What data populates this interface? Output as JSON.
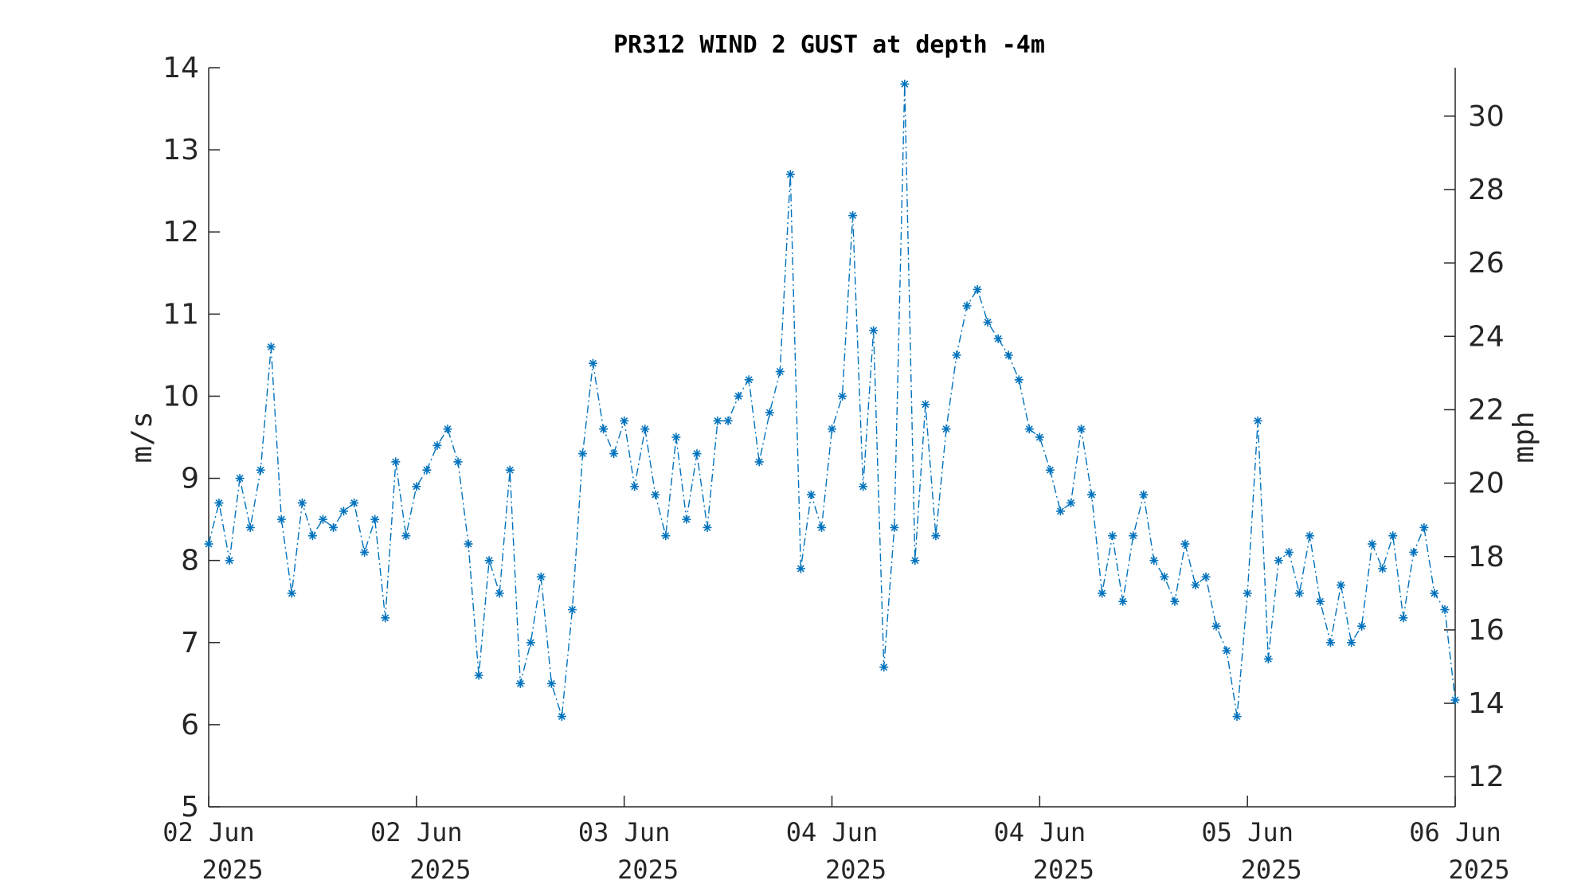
{
  "chart_data": {
    "type": "line",
    "title": "PR312 WIND 2 GUST at depth -4m",
    "ylabel": "m/s",
    "ylabel_right": "mph",
    "ylim": [
      5,
      14
    ],
    "ylim_right": [
      11.18,
      31.32
    ],
    "yticks": [
      5,
      6,
      7,
      8,
      9,
      10,
      11,
      12,
      13,
      14
    ],
    "yticks_right": [
      12,
      14,
      16,
      18,
      20,
      22,
      24,
      26,
      28,
      30
    ],
    "xlim": [
      0,
      6
    ],
    "xticks": [
      0,
      1,
      2,
      3,
      4,
      5,
      6
    ],
    "xtick_labels": [
      [
        "02 Jun",
        "2025"
      ],
      [
        "02 Jun",
        "2025"
      ],
      [
        "03 Jun",
        "2025"
      ],
      [
        "04 Jun",
        "2025"
      ],
      [
        "04 Jun",
        "2025"
      ],
      [
        "05 Jun",
        "2025"
      ],
      [
        "06 Jun",
        "2025"
      ]
    ],
    "marker": "asterisk",
    "line_style": "dash-dot",
    "grid": false,
    "color": "#0072BD",
    "series": [
      {
        "x": [
          0.0,
          0.05,
          0.1,
          0.15,
          0.2,
          0.25,
          0.3,
          0.35,
          0.4,
          0.45,
          0.5,
          0.55,
          0.6,
          0.65,
          0.7,
          0.75,
          0.8,
          0.85,
          0.9,
          0.95,
          1.0,
          1.05,
          1.1,
          1.15,
          1.2,
          1.25,
          1.3,
          1.35,
          1.4,
          1.45,
          1.5,
          1.55,
          1.6,
          1.65,
          1.7,
          1.75,
          1.8,
          1.85,
          1.9,
          1.95,
          2.0,
          2.05,
          2.1,
          2.15,
          2.2,
          2.25,
          2.3,
          2.35,
          2.4,
          2.45,
          2.5,
          2.55,
          2.6,
          2.65,
          2.7,
          2.75,
          2.8,
          2.85,
          2.9,
          2.95,
          3.0,
          3.05,
          3.1,
          3.15,
          3.2,
          3.25,
          3.3,
          3.35,
          3.4,
          3.45,
          3.5,
          3.55,
          3.6,
          3.65,
          3.7,
          3.75,
          3.8,
          3.85,
          3.9,
          3.95,
          4.0,
          4.05,
          4.1,
          4.15,
          4.2,
          4.25,
          4.3,
          4.35,
          4.4,
          4.45,
          4.5,
          4.55,
          4.6,
          4.65,
          4.7,
          4.75,
          4.8,
          4.85,
          4.9,
          4.95,
          5.0,
          5.05,
          5.1,
          5.15,
          5.2,
          5.25,
          5.3,
          5.35,
          5.4,
          5.45,
          5.5,
          5.55,
          5.6,
          5.65,
          5.7,
          5.75,
          5.8,
          5.85,
          5.9,
          5.95,
          6.0
        ],
        "y": [
          8.2,
          8.7,
          8.0,
          9.0,
          8.4,
          9.1,
          10.6,
          8.5,
          7.6,
          8.7,
          8.3,
          8.5,
          8.4,
          8.6,
          8.7,
          8.1,
          8.5,
          7.3,
          9.2,
          8.3,
          8.9,
          9.1,
          9.4,
          9.6,
          9.2,
          8.2,
          6.6,
          8.0,
          7.6,
          9.1,
          6.5,
          7.0,
          7.8,
          6.5,
          6.1,
          7.4,
          9.3,
          10.4,
          9.6,
          9.3,
          9.7,
          8.9,
          9.6,
          8.8,
          8.3,
          9.5,
          8.5,
          9.3,
          8.4,
          9.7,
          9.7,
          10.0,
          10.2,
          9.2,
          9.8,
          10.3,
          12.7,
          7.9,
          8.8,
          8.4,
          9.6,
          10.0,
          12.2,
          8.9,
          10.8,
          6.7,
          8.4,
          13.8,
          8.0,
          9.9,
          8.3,
          9.6,
          10.5,
          11.1,
          11.3,
          10.9,
          10.7,
          10.5,
          10.2,
          9.6,
          9.5,
          9.1,
          8.6,
          8.7,
          9.6,
          8.8,
          7.6,
          8.3,
          7.5,
          8.3,
          8.8,
          8.0,
          7.8,
          7.5,
          8.2,
          7.7,
          7.8,
          7.2,
          6.9,
          6.1,
          7.6,
          9.7,
          6.8,
          8.0,
          8.1,
          7.6,
          8.3,
          7.5,
          7.0,
          7.7,
          7.0,
          7.2,
          8.2,
          7.9,
          8.3,
          7.3,
          8.1,
          8.4,
          7.6,
          7.4,
          6.3
        ]
      }
    ]
  }
}
